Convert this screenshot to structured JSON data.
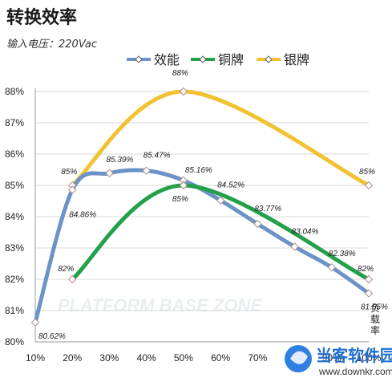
{
  "chart_data": {
    "type": "line",
    "title": "转换效率",
    "subtitle": "输入电压：220Vac",
    "categories": [
      "10%",
      "20%",
      "30%",
      "40%",
      "50%",
      "60%",
      "70%",
      "80%",
      "90%",
      "100%"
    ],
    "y_ticks": [
      "80%",
      "81%",
      "82%",
      "83%",
      "84%",
      "85%",
      "86%",
      "87%",
      "88%"
    ],
    "ylim": [
      80,
      88
    ],
    "grid": true,
    "legend_position": "top",
    "xlabel": "负载率",
    "series": [
      {
        "name": "效能",
        "color": "#6b93c7",
        "x": [
          "10%",
          "20%",
          "30%",
          "40%",
          "50%",
          "60%",
          "70%",
          "80%",
          "90%",
          "100%"
        ],
        "values": [
          80.62,
          84.86,
          85.39,
          85.47,
          85.16,
          84.52,
          83.77,
          83.04,
          82.38,
          81.55
        ],
        "labels": [
          "80.62%",
          "84.86%",
          "85.39%",
          "85.47%",
          "85.16%",
          "84.52%",
          "83.77%",
          "83.04%",
          "82.38%",
          "81.55%"
        ]
      },
      {
        "name": "铜牌",
        "color": "#23a04a",
        "x": [
          "20%",
          "50%",
          "100%"
        ],
        "values": [
          82,
          85,
          82
        ],
        "labels": [
          "82%",
          "85%",
          "82%"
        ]
      },
      {
        "name": "银牌",
        "color": "#f1c232",
        "x": [
          "20%",
          "50%",
          "100%"
        ],
        "values": [
          85,
          88,
          85
        ],
        "labels": [
          "85%",
          "88%",
          "85%"
        ]
      }
    ],
    "watermark": "PLATFORM BASE ZONE",
    "site_logo": {
      "name": "当客软件园",
      "url": "www.downkr.com"
    }
  }
}
